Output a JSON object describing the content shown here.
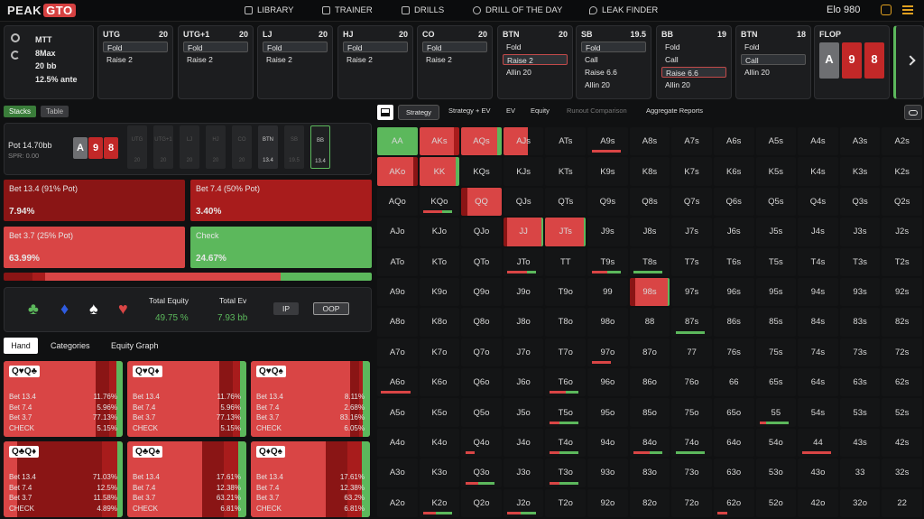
{
  "logo": {
    "a": "PEAK",
    "b": "GTO"
  },
  "nav": [
    "LIBRARY",
    "TRAINER",
    "DRILLS",
    "DRILL OF THE DAY",
    "LEAK FINDER"
  ],
  "elo": "Elo 980",
  "settings": {
    "format": "MTT",
    "table": "8Max",
    "stack": "20 bb",
    "ante": "12.5% ante"
  },
  "positions": [
    {
      "name": "UTG",
      "stack": "20",
      "actions": [
        {
          "t": "Fold",
          "s": "sel"
        },
        {
          "t": "Raise 2",
          "s": ""
        }
      ]
    },
    {
      "name": "UTG+1",
      "stack": "20",
      "actions": [
        {
          "t": "Fold",
          "s": "sel"
        },
        {
          "t": "Raise 2",
          "s": ""
        }
      ]
    },
    {
      "name": "LJ",
      "stack": "20",
      "actions": [
        {
          "t": "Fold",
          "s": "sel"
        },
        {
          "t": "Raise 2",
          "s": ""
        }
      ]
    },
    {
      "name": "HJ",
      "stack": "20",
      "actions": [
        {
          "t": "Fold",
          "s": "sel"
        },
        {
          "t": "Raise 2",
          "s": ""
        }
      ]
    },
    {
      "name": "CO",
      "stack": "20",
      "actions": [
        {
          "t": "Fold",
          "s": "sel"
        },
        {
          "t": "Raise 2",
          "s": ""
        }
      ]
    },
    {
      "name": "BTN",
      "stack": "20",
      "actions": [
        {
          "t": "Fold",
          "s": ""
        },
        {
          "t": "Raise 2",
          "s": "selr"
        },
        {
          "t": "Allin 20",
          "s": ""
        }
      ]
    },
    {
      "name": "SB",
      "stack": "19.5",
      "actions": [
        {
          "t": "Fold",
          "s": "sel"
        },
        {
          "t": "Call",
          "s": ""
        },
        {
          "t": "Raise 6.6",
          "s": ""
        },
        {
          "t": "Allin 20",
          "s": ""
        }
      ]
    },
    {
      "name": "BB",
      "stack": "19",
      "actions": [
        {
          "t": "Fold",
          "s": ""
        },
        {
          "t": "Call",
          "s": ""
        },
        {
          "t": "Raise 6.6",
          "s": "selr"
        },
        {
          "t": "Allin 20",
          "s": ""
        }
      ]
    },
    {
      "name": "BTN",
      "stack": "18",
      "actions": [
        {
          "t": "Fold",
          "s": ""
        },
        {
          "t": "Call",
          "s": "sel"
        },
        {
          "t": "Allin 20",
          "s": ""
        }
      ]
    }
  ],
  "flop": {
    "label": "FLOP",
    "cards": [
      {
        "r": "A",
        "c": "gray"
      },
      {
        "r": "9",
        "c": "red"
      },
      {
        "r": "8",
        "c": "red"
      }
    ]
  },
  "view_tabs": [
    "Stacks",
    "Table"
  ],
  "pot": {
    "label": "Pot",
    "value": "14.70bb",
    "spr": "SPR: 0.00",
    "cards": [
      {
        "r": "A",
        "c": "gray"
      },
      {
        "r": "9",
        "c": "red"
      },
      {
        "r": "8",
        "c": "red"
      }
    ]
  },
  "seats": [
    {
      "n": "UTG",
      "s": "20"
    },
    {
      "n": "UTG+1",
      "s": "20"
    },
    {
      "n": "LJ",
      "s": "20"
    },
    {
      "n": "HJ",
      "s": "20"
    },
    {
      "n": "CO",
      "s": "20"
    },
    {
      "n": "BTN",
      "s": "13.4"
    },
    {
      "n": "SB",
      "s": "19.5"
    },
    {
      "n": "BB",
      "s": "13.4"
    }
  ],
  "strategy_actions": [
    {
      "label": "Bet 13.4 (91% Pot)",
      "pct": "7.94%",
      "color": "#8a1515"
    },
    {
      "label": "Bet 7.4 (50% Pot)",
      "pct": "3.40%",
      "color": "#a81c1c"
    },
    {
      "label": "Bet 3.7 (25% Pot)",
      "pct": "63.99%",
      "color": "#d94545"
    },
    {
      "label": "Check",
      "pct": "24.67%",
      "color": "#5cb85c"
    }
  ],
  "freq_bar": [
    {
      "v": 7.94,
      "c": "#8a1515"
    },
    {
      "v": 3.4,
      "c": "#a81c1c"
    },
    {
      "v": 63.99,
      "c": "#d94545"
    },
    {
      "v": 24.67,
      "c": "#5cb85c"
    }
  ],
  "equity": {
    "suits": [
      "♣",
      "♦",
      "♠",
      "♥"
    ],
    "total_equity_label": "Total Equity",
    "total_equity": "49.75 %",
    "total_ev_label": "Total Ev",
    "total_ev": "7.93 bb",
    "ip": "IP",
    "oop": "OOP"
  },
  "sub_tabs": [
    "Hand",
    "Categories",
    "Equity Graph"
  ],
  "hand_cards": [
    {
      "combo": "Q♥Q♣",
      "rows": [
        [
          "Bet 13.4",
          "11.76%"
        ],
        [
          "Bet 7.4",
          "5.96%"
        ],
        [
          "Bet 3.7",
          "77.13%"
        ],
        [
          "CHECK",
          "5.15%"
        ]
      ],
      "mix": [
        11.76,
        5.96,
        77.13,
        5.15
      ]
    },
    {
      "combo": "Q♥Q♦",
      "rows": [
        [
          "Bet 13.4",
          "11.76%"
        ],
        [
          "Bet 7.4",
          "5.96%"
        ],
        [
          "Bet 3.7",
          "77.13%"
        ],
        [
          "CHECK",
          "5.15%"
        ]
      ],
      "mix": [
        11.76,
        5.96,
        77.13,
        5.15
      ]
    },
    {
      "combo": "Q♥Q♠",
      "rows": [
        [
          "Bet 13.4",
          "8.11%"
        ],
        [
          "Bet 7.4",
          "2.68%"
        ],
        [
          "Bet 3.7",
          "83.16%"
        ],
        [
          "CHECK",
          "6.05%"
        ]
      ],
      "mix": [
        8.11,
        2.68,
        83.16,
        6.05
      ]
    },
    {
      "combo": "Q♣Q♦",
      "rows": [
        [
          "Bet 13.4",
          "71.03%"
        ],
        [
          "Bet 7.4",
          "12.5%"
        ],
        [
          "Bet 3.7",
          "11.58%"
        ],
        [
          "CHECK",
          "4.89%"
        ]
      ],
      "mix": [
        71.03,
        12.5,
        11.58,
        4.89
      ]
    },
    {
      "combo": "Q♣Q♠",
      "rows": [
        [
          "Bet 13.4",
          "17.61%"
        ],
        [
          "Bet 7.4",
          "12.38%"
        ],
        [
          "Bet 3.7",
          "63.21%"
        ],
        [
          "CHECK",
          "6.81%"
        ]
      ],
      "mix": [
        17.61,
        12.38,
        63.21,
        6.81
      ]
    },
    {
      "combo": "Q♦Q♠",
      "rows": [
        [
          "Bet 13.4",
          "17.61%"
        ],
        [
          "Bet 7.4",
          "12.38%"
        ],
        [
          "Bet 3.7",
          "63.2%"
        ],
        [
          "CHECK",
          "6.81%"
        ]
      ],
      "mix": [
        17.61,
        12.38,
        63.2,
        6.81
      ]
    }
  ],
  "matrix_tabs": [
    "Strategy",
    "Strategy + EV",
    "EV",
    "Equity",
    "Runout Comparison",
    "Aggregate Reports"
  ],
  "matrix": [
    [
      "AA",
      "AKs",
      "AQs",
      "AJs",
      "ATs",
      "A9s",
      "A8s",
      "A7s",
      "A6s",
      "A5s",
      "A4s",
      "A3s",
      "A2s"
    ],
    [
      "AKo",
      "KK",
      "KQs",
      "KJs",
      "KTs",
      "K9s",
      "K8s",
      "K7s",
      "K6s",
      "K5s",
      "K4s",
      "K3s",
      "K2s"
    ],
    [
      "AQo",
      "KQo",
      "QQ",
      "QJs",
      "QTs",
      "Q9s",
      "Q8s",
      "Q7s",
      "Q6s",
      "Q5s",
      "Q4s",
      "Q3s",
      "Q2s"
    ],
    [
      "AJo",
      "KJo",
      "QJo",
      "JJ",
      "JTs",
      "J9s",
      "J8s",
      "J7s",
      "J6s",
      "J5s",
      "J4s",
      "J3s",
      "J2s"
    ],
    [
      "ATo",
      "KTo",
      "QTo",
      "JTo",
      "TT",
      "T9s",
      "T8s",
      "T7s",
      "T6s",
      "T5s",
      "T4s",
      "T3s",
      "T2s"
    ],
    [
      "A9o",
      "K9o",
      "Q9o",
      "J9o",
      "T9o",
      "99",
      "98s",
      "97s",
      "96s",
      "95s",
      "94s",
      "93s",
      "92s"
    ],
    [
      "A8o",
      "K8o",
      "Q8o",
      "J8o",
      "T8o",
      "98o",
      "88",
      "87s",
      "86s",
      "85s",
      "84s",
      "83s",
      "82s"
    ],
    [
      "A7o",
      "K7o",
      "Q7o",
      "J7o",
      "T7o",
      "97o",
      "87o",
      "77",
      "76s",
      "75s",
      "74s",
      "73s",
      "72s"
    ],
    [
      "A6o",
      "K6o",
      "Q6o",
      "J6o",
      "T6o",
      "96o",
      "86o",
      "76o",
      "66",
      "65s",
      "64s",
      "63s",
      "62s"
    ],
    [
      "A5o",
      "K5o",
      "Q5o",
      "J5o",
      "T5o",
      "95o",
      "85o",
      "75o",
      "65o",
      "55",
      "54s",
      "53s",
      "52s"
    ],
    [
      "A4o",
      "K4o",
      "Q4o",
      "J4o",
      "T4o",
      "94o",
      "84o",
      "74o",
      "64o",
      "54o",
      "44",
      "43s",
      "42s"
    ],
    [
      "A3o",
      "K3o",
      "Q3o",
      "J3o",
      "T3o",
      "93o",
      "83o",
      "73o",
      "63o",
      "53o",
      "43o",
      "33",
      "32s"
    ],
    [
      "A2o",
      "K2o",
      "Q2o",
      "J2o",
      "T2o",
      "92o",
      "82o",
      "72o",
      "62o",
      "52o",
      "42o",
      "32o",
      "22"
    ]
  ],
  "cell_mix": {
    "AA": [
      [
        0.2,
        "#5cb85c"
      ],
      [
        0.8,
        "#5cb85c"
      ]
    ],
    "AKs": [
      [
        0.85,
        "#d94545"
      ],
      [
        0.15,
        "#a81c1c"
      ]
    ],
    "AQs": [
      [
        0.9,
        "#d94545"
      ],
      [
        0.1,
        "#5cb85c"
      ]
    ],
    "AJs": [
      [
        0.6,
        "#d94545"
      ],
      [
        0.4,
        "#141516"
      ]
    ],
    "AKo": [
      [
        0.9,
        "#d94545"
      ],
      [
        0.1,
        "#8a1515"
      ]
    ],
    "KK": [
      [
        0.9,
        "#d94545"
      ],
      [
        0.1,
        "#5cb85c"
      ]
    ],
    "QQ": [
      [
        0.15,
        "#8a1515"
      ],
      [
        0.85,
        "#d94545"
      ]
    ],
    "JJ": [
      [
        0.1,
        "#8a1515"
      ],
      [
        0.85,
        "#d94545"
      ],
      [
        0.05,
        "#5cb85c"
      ]
    ],
    "JTs": [
      [
        0.95,
        "#d94545"
      ],
      [
        0.05,
        "#5cb85c"
      ]
    ],
    "98s": [
      [
        0.15,
        "#8a1515"
      ],
      [
        0.8,
        "#d94545"
      ],
      [
        0.05,
        "#5cb85c"
      ]
    ]
  },
  "cell_under": {
    "A9s": [
      [
        0.9,
        "#d94545"
      ]
    ],
    "KQo": [
      [
        0.6,
        "#d94545"
      ],
      [
        0.3,
        "#5cb85c"
      ]
    ],
    "JTo": [
      [
        0.6,
        "#d94545"
      ],
      [
        0.3,
        "#5cb85c"
      ]
    ],
    "T9s": [
      [
        0.5,
        "#d94545"
      ],
      [
        0.4,
        "#5cb85c"
      ]
    ],
    "T8s": [
      [
        0.9,
        "#5cb85c"
      ]
    ],
    "87s": [
      [
        0.9,
        "#5cb85c"
      ]
    ],
    "97o": [
      [
        0.6,
        "#d94545"
      ]
    ],
    "A6o": [
      [
        0.9,
        "#d94545"
      ]
    ],
    "T6o": [
      [
        0.5,
        "#d94545"
      ],
      [
        0.4,
        "#5cb85c"
      ]
    ],
    "T5o": [
      [
        0.3,
        "#d94545"
      ],
      [
        0.6,
        "#5cb85c"
      ]
    ],
    "55": [
      [
        0.2,
        "#d94545"
      ],
      [
        0.7,
        "#5cb85c"
      ]
    ],
    "T4o": [
      [
        0.3,
        "#d94545"
      ],
      [
        0.6,
        "#5cb85c"
      ]
    ],
    "84o": [
      [
        0.5,
        "#d94545"
      ],
      [
        0.4,
        "#5cb85c"
      ]
    ],
    "74o": [
      [
        0.9,
        "#5cb85c"
      ]
    ],
    "44": [
      [
        0.9,
        "#d94545"
      ]
    ],
    "Q3o": [
      [
        0.4,
        "#d94545"
      ],
      [
        0.5,
        "#5cb85c"
      ]
    ],
    "K2o": [
      [
        0.4,
        "#d94545"
      ],
      [
        0.5,
        "#5cb85c"
      ]
    ],
    "J2o": [
      [
        0.4,
        "#d94545"
      ],
      [
        0.5,
        "#5cb85c"
      ]
    ],
    "62o": [
      [
        0.3,
        "#d94545"
      ]
    ],
    "T3o": [
      [
        0.3,
        "#d94545"
      ],
      [
        0.6,
        "#5cb85c"
      ]
    ],
    "Q4o": [
      [
        0.3,
        "#d94545"
      ]
    ]
  }
}
